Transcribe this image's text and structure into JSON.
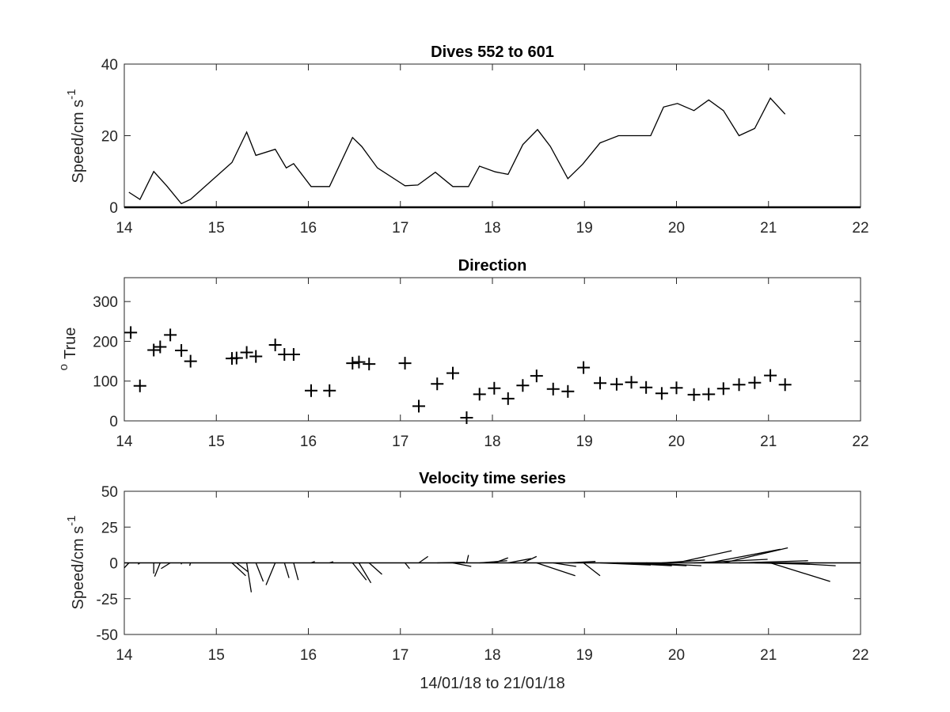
{
  "chart_data": [
    {
      "type": "line",
      "title": "Dives 552 to 601",
      "ylabel": "Speed/cm s",
      "ylabel_sup": "-1",
      "xlabel": "",
      "xlim": [
        14,
        22
      ],
      "ylim": [
        0,
        40
      ],
      "x_ticks": [
        "14",
        "15",
        "16",
        "17",
        "18",
        "19",
        "20",
        "21",
        "22"
      ],
      "y_ticks": [
        "0",
        "20",
        "40"
      ],
      "grid": false,
      "color": "#000000",
      "x": [
        14.05,
        14.17,
        14.32,
        14.46,
        14.62,
        14.72,
        15.17,
        15.33,
        15.43,
        15.64,
        15.76,
        15.84,
        16.03,
        16.23,
        16.48,
        16.58,
        16.75,
        17.05,
        17.19,
        17.38,
        17.57,
        17.74,
        17.86,
        18.03,
        18.17,
        18.33,
        18.49,
        18.63,
        18.82,
        18.98,
        19.17,
        19.37,
        19.55,
        19.72,
        19.86,
        20.01,
        20.19,
        20.35,
        20.51,
        20.68,
        20.85,
        21.02,
        21.18
      ],
      "y": [
        4.2,
        2.2,
        10.0,
        6.0,
        1.0,
        2.2,
        12.5,
        21.0,
        14.5,
        16.2,
        11.0,
        12.2,
        5.8,
        5.8,
        19.5,
        17.0,
        11.0,
        6.0,
        6.2,
        9.8,
        5.8,
        5.8,
        11.5,
        9.9,
        9.2,
        17.5,
        21.7,
        17.0,
        8.0,
        12.0,
        18.0,
        20.0,
        20.0,
        20.0,
        28.0,
        29.0,
        27.0,
        30.0,
        27.0,
        20.0,
        22.0,
        30.5,
        26.0
      ]
    },
    {
      "type": "scatter",
      "title": "Direction",
      "ylabel": "True",
      "ylabel_sup": "o",
      "xlabel": "",
      "xlim": [
        14,
        22
      ],
      "ylim": [
        0,
        360
      ],
      "x_ticks": [
        "14",
        "15",
        "16",
        "17",
        "18",
        "19",
        "20",
        "21",
        "22"
      ],
      "y_ticks": [
        "0",
        "100",
        "200",
        "300"
      ],
      "grid": false,
      "marker": "+",
      "color": "#000000",
      "x": [
        14.07,
        14.17,
        14.32,
        14.39,
        14.5,
        14.62,
        14.72,
        15.17,
        15.22,
        15.33,
        15.43,
        15.64,
        15.74,
        15.84,
        16.03,
        16.23,
        16.48,
        16.55,
        16.66,
        17.05,
        17.2,
        17.4,
        17.57,
        17.72,
        17.86,
        18.02,
        18.17,
        18.33,
        18.48,
        18.66,
        18.82,
        18.99,
        19.17,
        19.35,
        19.51,
        19.67,
        19.84,
        20.0,
        20.19,
        20.35,
        20.51,
        20.68,
        20.85,
        21.02,
        21.18
      ],
      "y": [
        222,
        88,
        178,
        186,
        216,
        177,
        150,
        157,
        158,
        172,
        162,
        191,
        167,
        167,
        76,
        76,
        145,
        148,
        143,
        145,
        37,
        93,
        120,
        8,
        67,
        82,
        56,
        89,
        113,
        80,
        74,
        134,
        95,
        92,
        97,
        84,
        69,
        83,
        66,
        67,
        81,
        91,
        96,
        114,
        91
      ]
    },
    {
      "type": "line",
      "subtype": "velocity stick plot",
      "title": "Velocity time series",
      "ylabel": "Speed/cm s",
      "ylabel_sup": "-1",
      "xlabel": "14/01/18 to 21/01/18",
      "xlim": [
        14,
        22
      ],
      "ylim": [
        -50,
        50
      ],
      "x_ticks": [
        "14",
        "15",
        "16",
        "17",
        "18",
        "19",
        "20",
        "21",
        "22"
      ],
      "y_ticks": [
        "-50",
        "-25",
        "0",
        "25",
        "50"
      ],
      "grid": false,
      "baseline": 0,
      "color": "#000000",
      "sticks": [
        {
          "x": 14.05,
          "u": -0.05,
          "v": -3.5
        },
        {
          "x": 14.17,
          "u": -0.02,
          "v": -1.0
        },
        {
          "x": 14.32,
          "u": 0.0,
          "v": -7.5
        },
        {
          "x": 14.39,
          "u": -0.06,
          "v": -9.5
        },
        {
          "x": 14.5,
          "u": -0.1,
          "v": -4.0
        },
        {
          "x": 14.62,
          "u": 0.0,
          "v": -1.0
        },
        {
          "x": 14.72,
          "u": -0.01,
          "v": -2.0
        },
        {
          "x": 15.17,
          "u": 0.15,
          "v": -9.0
        },
        {
          "x": 15.22,
          "u": 0.12,
          "v": -6.0
        },
        {
          "x": 15.33,
          "u": 0.05,
          "v": -20.5
        },
        {
          "x": 15.43,
          "u": 0.08,
          "v": -13.0
        },
        {
          "x": 15.64,
          "u": -0.1,
          "v": -15.5
        },
        {
          "x": 15.74,
          "u": 0.05,
          "v": -10.5
        },
        {
          "x": 15.84,
          "u": 0.05,
          "v": -12.0
        },
        {
          "x": 16.03,
          "u": 0.04,
          "v": 1.0
        },
        {
          "x": 16.23,
          "u": 0.04,
          "v": 0.8
        },
        {
          "x": 16.48,
          "u": 0.15,
          "v": -12.0
        },
        {
          "x": 16.55,
          "u": 0.13,
          "v": -14.0
        },
        {
          "x": 16.66,
          "u": 0.14,
          "v": -8.0
        },
        {
          "x": 17.05,
          "u": 0.05,
          "v": -4.0
        },
        {
          "x": 17.2,
          "u": 0.1,
          "v": 4.5
        },
        {
          "x": 17.4,
          "u": 0.3,
          "v": 0.5
        },
        {
          "x": 17.57,
          "u": 0.2,
          "v": -2.5
        },
        {
          "x": 17.72,
          "u": 0.02,
          "v": 5.5
        },
        {
          "x": 17.86,
          "u": 0.3,
          "v": 1.5
        },
        {
          "x": 18.02,
          "u": 0.15,
          "v": 3.5
        },
        {
          "x": 18.17,
          "u": 0.25,
          "v": 3.0
        },
        {
          "x": 18.33,
          "u": 0.15,
          "v": 4.5
        },
        {
          "x": 18.48,
          "u": 0.42,
          "v": -9.0
        },
        {
          "x": 18.66,
          "u": 0.25,
          "v": -2.5
        },
        {
          "x": 18.82,
          "u": 0.3,
          "v": 1.0
        },
        {
          "x": 18.99,
          "u": 0.18,
          "v": -9.0
        },
        {
          "x": 19.17,
          "u": 0.55,
          "v": -1.5
        },
        {
          "x": 19.35,
          "u": 0.6,
          "v": -2.0
        },
        {
          "x": 19.51,
          "u": 0.6,
          "v": -2.0
        },
        {
          "x": 19.67,
          "u": 0.6,
          "v": -2.0
        },
        {
          "x": 19.84,
          "u": 0.47,
          "v": 2.0
        },
        {
          "x": 20.0,
          "u": 0.6,
          "v": 8.5
        },
        {
          "x": 20.19,
          "u": 0.8,
          "v": 2.5
        },
        {
          "x": 20.35,
          "u": 0.78,
          "v": 9.5
        },
        {
          "x": 20.51,
          "u": 0.7,
          "v": 10.5
        },
        {
          "x": 20.68,
          "u": 0.75,
          "v": 1.5
        },
        {
          "x": 20.85,
          "u": 0.6,
          "v": -1.0
        },
        {
          "x": 21.02,
          "u": 0.65,
          "v": -13.0
        },
        {
          "x": 21.18,
          "u": 0.55,
          "v": -2.0
        }
      ]
    }
  ]
}
